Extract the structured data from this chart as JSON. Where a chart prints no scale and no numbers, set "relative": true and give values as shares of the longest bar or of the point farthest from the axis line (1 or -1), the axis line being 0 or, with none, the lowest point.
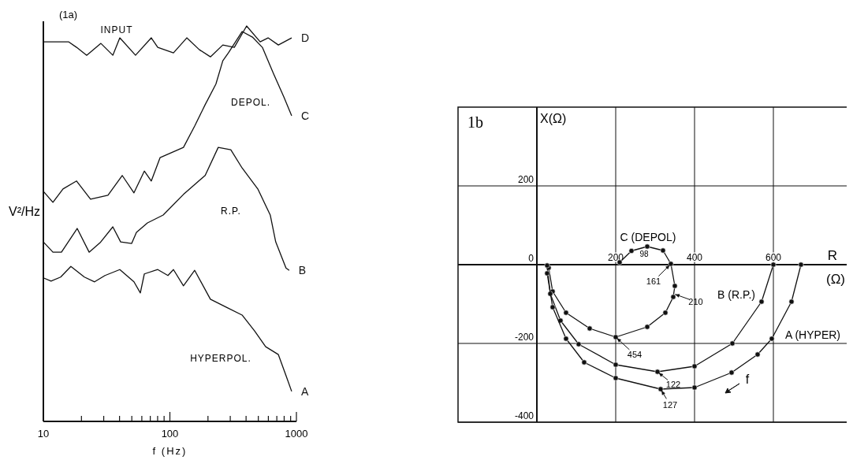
{
  "chart_data": [
    {
      "type": "line",
      "relative": true,
      "log": "x",
      "xlabel": "f (Hz)",
      "ylabel": "V²/Hz",
      "xlim": [
        10,
        1000
      ],
      "xticks": [
        10,
        {
          "value": 20,
          "label": null
        },
        {
          "value": 30,
          "label": null
        },
        {
          "value": 40,
          "label": null
        },
        {
          "value": 50,
          "label": null
        },
        {
          "value": 60,
          "label": null
        },
        {
          "value": 70,
          "label": null
        },
        {
          "value": 80,
          "label": null
        },
        {
          "value": 90,
          "label": null
        },
        100,
        {
          "value": 200,
          "label": null
        },
        {
          "value": 300,
          "label": null
        },
        {
          "value": 400,
          "label": null
        },
        {
          "value": 500,
          "label": null
        },
        {
          "value": 600,
          "label": null
        },
        {
          "value": 700,
          "label": null
        },
        {
          "value": 800,
          "label": null
        },
        {
          "value": 900,
          "label": null
        },
        1000
      ],
      "marker": "none",
      "annotations": [
        "(1a)",
        "INPUT",
        "DEPOL.",
        "R.P.",
        "HYPERPOL."
      ],
      "series": [
        {
          "name": "D",
          "color": "#111111",
          "x": [
            10,
            15.8,
            18.3,
            22,
            28.5,
            35.4,
            40.2,
            53.5,
            71.3,
            80.2,
            106.7,
            136,
            171,
            209,
            262,
            323,
            404,
            517,
            597,
            720,
            917
          ],
          "values": [
            0.96,
            0.96,
            0.946,
            0.926,
            0.956,
            0.926,
            0.97,
            0.926,
            0.97,
            0.946,
            0.932,
            0.97,
            0.94,
            0.922,
            0.952,
            0.946,
            1.0,
            0.96,
            0.97,
            0.952,
            0.97
          ]
        },
        {
          "name": "C",
          "color": "#111111",
          "x": [
            10,
            11.9,
            14.3,
            18.3,
            23.6,
            32.4,
            42,
            52,
            62.8,
            71.3,
            83.6,
            128,
            157,
            190,
            231,
            262,
            290,
            372,
            449,
            538,
            658,
            794,
            917
          ],
          "values": [
            0.582,
            0.554,
            0.588,
            0.608,
            0.562,
            0.572,
            0.622,
            0.578,
            0.633,
            0.608,
            0.667,
            0.693,
            0.747,
            0.801,
            0.853,
            0.912,
            0.932,
            0.986,
            0.972,
            0.946,
            0.88,
            0.821,
            0.773
          ]
        },
        {
          "name": "B",
          "color": "#111111",
          "x": [
            10,
            11.9,
            13.9,
            18.5,
            23,
            28.1,
            35.4,
            40.8,
            49.9,
            54.4,
            66.5,
            88.5,
            128,
            190,
            241,
            303,
            372,
            495,
            621,
            686,
            827,
            877
          ],
          "values": [
            0.454,
            0.428,
            0.428,
            0.488,
            0.428,
            0.452,
            0.492,
            0.454,
            0.45,
            0.478,
            0.502,
            0.522,
            0.574,
            0.622,
            0.693,
            0.687,
            0.641,
            0.588,
            0.522,
            0.454,
            0.388,
            0.382
          ]
        },
        {
          "name": "A",
          "color": "#111111",
          "x": [
            10,
            11.5,
            13.7,
            16.5,
            21.1,
            25.4,
            30.7,
            40.2,
            52,
            58.4,
            62.8,
            80.2,
            96.5,
            106.7,
            128,
            157,
            209,
            278,
            372,
            467,
            571,
            720,
            827,
            917
          ],
          "values": [
            0.363,
            0.355,
            0.365,
            0.392,
            0.365,
            0.353,
            0.369,
            0.384,
            0.353,
            0.325,
            0.373,
            0.384,
            0.369,
            0.384,
            0.343,
            0.382,
            0.309,
            0.289,
            0.269,
            0.229,
            0.189,
            0.169,
            0.116,
            0.076
          ]
        }
      ]
    },
    {
      "type": "line",
      "xlabel": "R (Ω)",
      "ylabel": "X(Ω)",
      "xlim": [
        -200,
        790
      ],
      "ylim": [
        -400,
        400
      ],
      "xticks": [
        200,
        400,
        600
      ],
      "yticks": [
        -400,
        -200,
        0,
        200
      ],
      "grid": true,
      "marker": "circle",
      "annotations": [
        "1b",
        "C (DEPOL)",
        "B (R.P.)",
        "A (HYPER)",
        "98",
        "f",
        {
          "text": "161",
          "x": 340,
          "y": 2
        },
        {
          "text": "210",
          "x": 347,
          "y": -74
        },
        {
          "text": "454",
          "x": 200,
          "y": -184
        },
        {
          "text": "122",
          "x": 306,
          "y": -272
        },
        {
          "text": "127",
          "x": 314,
          "y": -316
        }
      ],
      "series": [
        {
          "color": "#111111",
          "x": [
            210,
            240,
            280,
            320,
            340,
            350,
            346,
            326,
            280,
            200,
            134,
            74,
            40,
            30
          ],
          "values": [
            6,
            35,
            46,
            36,
            2,
            -54,
            -82,
            -122,
            -158,
            -184,
            -162,
            -122,
            -68,
            -8
          ]
        },
        {
          "color": "#111111",
          "x": [
            600,
            570,
            496,
            400,
            306,
            200,
            106,
            60,
            34,
            26
          ],
          "values": [
            0,
            -94,
            -200,
            -258,
            -272,
            -254,
            -202,
            -142,
            -74,
            -2
          ]
        },
        {
          "color": "#111111",
          "x": [
            670,
            646,
            596,
            560,
            494,
            400,
            314,
            200,
            120,
            74,
            40,
            26
          ],
          "values": [
            0,
            -94,
            -188,
            -228,
            -274,
            -312,
            -316,
            -288,
            -248,
            -188,
            -108,
            -22
          ]
        }
      ]
    }
  ]
}
